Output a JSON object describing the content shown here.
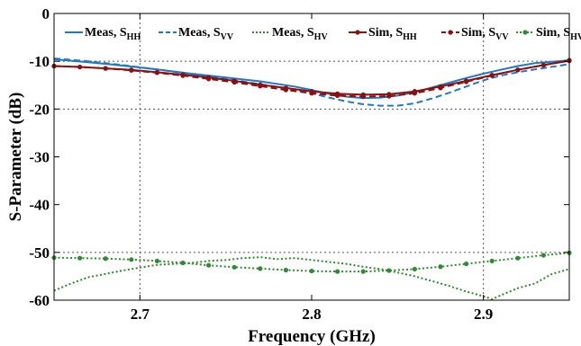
{
  "chart_data": {
    "type": "line",
    "xlabel": "Frequency (GHz)",
    "ylabel": "S-Parameter (dB)",
    "xlim": [
      2.65,
      2.95
    ],
    "ylim": [
      -60,
      0
    ],
    "x_ticks": [
      2.7,
      2.8,
      2.9
    ],
    "y_ticks": [
      0,
      -10,
      -20,
      -30,
      -40,
      -50,
      -60
    ],
    "x_tick_labels": [
      "2.7",
      "2.8",
      "2.9"
    ],
    "y_tick_labels": [
      "0",
      "-10",
      "-20",
      "-30",
      "-40",
      "-50",
      "-60"
    ],
    "grid": "dotted, at x=2.7, 2.9 and y=-10, -20, -50",
    "legend_position": "top",
    "series": [
      {
        "name": "Meas, SHH",
        "legend_main": "Meas, S",
        "legend_sub": "HH",
        "color": "#1f78c8",
        "style": "solid",
        "marker": "none",
        "x": [
          2.65,
          2.67,
          2.69,
          2.71,
          2.73,
          2.75,
          2.77,
          2.79,
          2.8,
          2.81,
          2.82,
          2.83,
          2.84,
          2.85,
          2.86,
          2.87,
          2.88,
          2.89,
          2.9,
          2.91,
          2.92,
          2.93,
          2.95
        ],
        "y": [
          -9.6,
          -10.2,
          -10.9,
          -11.7,
          -12.6,
          -13.4,
          -14.2,
          -15.3,
          -16.0,
          -16.8,
          -17.4,
          -17.7,
          -17.6,
          -17.2,
          -16.5,
          -15.5,
          -14.5,
          -13.5,
          -12.6,
          -11.8,
          -11.0,
          -10.4,
          -9.8
        ]
      },
      {
        "name": "Meas, SVV",
        "legend_main": "Meas, S",
        "legend_sub": "VV",
        "color": "#1f78c8",
        "style": "dashed",
        "marker": "none",
        "x": [
          2.65,
          2.67,
          2.69,
          2.71,
          2.73,
          2.75,
          2.77,
          2.79,
          2.8,
          2.81,
          2.82,
          2.83,
          2.84,
          2.85,
          2.86,
          2.87,
          2.88,
          2.89,
          2.9,
          2.91,
          2.92,
          2.93,
          2.95
        ],
        "y": [
          -9.4,
          -10.0,
          -10.8,
          -11.7,
          -12.7,
          -13.7,
          -14.8,
          -16.0,
          -16.7,
          -17.6,
          -18.4,
          -19.0,
          -19.3,
          -19.3,
          -18.8,
          -17.8,
          -16.6,
          -15.3,
          -14.0,
          -13.0,
          -12.3,
          -11.7,
          -10.6
        ]
      },
      {
        "name": "Meas, SHV",
        "legend_main": "Meas, S",
        "legend_sub": "HV",
        "color": "#2e8b2e",
        "style": "dotted",
        "marker": "none",
        "x": [
          2.65,
          2.66,
          2.67,
          2.68,
          2.69,
          2.7,
          2.71,
          2.72,
          2.73,
          2.74,
          2.75,
          2.76,
          2.77,
          2.78,
          2.79,
          2.8,
          2.81,
          2.82,
          2.83,
          2.84,
          2.85,
          2.86,
          2.87,
          2.88,
          2.89,
          2.9,
          2.905,
          2.91,
          2.92,
          2.93,
          2.94,
          2.95
        ],
        "y": [
          -58.0,
          -56.5,
          -55.2,
          -54.5,
          -53.8,
          -53.2,
          -52.6,
          -52.4,
          -52.2,
          -51.8,
          -51.6,
          -51.2,
          -51.0,
          -51.4,
          -51.2,
          -51.6,
          -52.0,
          -52.4,
          -53.0,
          -53.5,
          -54.2,
          -55.0,
          -56.0,
          -57.0,
          -58.2,
          -59.2,
          -59.8,
          -59.0,
          -57.5,
          -56.5,
          -54.5,
          -53.5
        ]
      },
      {
        "name": "Sim, SHH",
        "legend_main": "Sim, S",
        "legend_sub": "HH",
        "color": "#8b1010",
        "style": "solid",
        "marker": "dot",
        "x": [
          2.65,
          2.665,
          2.68,
          2.695,
          2.71,
          2.725,
          2.74,
          2.755,
          2.77,
          2.785,
          2.8,
          2.815,
          2.83,
          2.845,
          2.86,
          2.875,
          2.89,
          2.905,
          2.92,
          2.935,
          2.95
        ],
        "y": [
          -11.0,
          -11.2,
          -11.5,
          -11.8,
          -12.3,
          -12.8,
          -13.4,
          -14.1,
          -14.9,
          -15.6,
          -16.3,
          -16.8,
          -17.0,
          -16.9,
          -16.3,
          -15.3,
          -14.1,
          -12.9,
          -11.8,
          -10.8,
          -9.9
        ]
      },
      {
        "name": "Sim, SVV",
        "legend_main": "Sim, S",
        "legend_sub": "VV",
        "color": "#8b1010",
        "style": "dashed",
        "marker": "dot",
        "x": [
          2.65,
          2.665,
          2.68,
          2.695,
          2.71,
          2.725,
          2.74,
          2.755,
          2.77,
          2.785,
          2.8,
          2.815,
          2.83,
          2.845,
          2.86,
          2.875,
          2.89,
          2.905,
          2.92,
          2.935,
          2.95
        ],
        "y": [
          -11.0,
          -11.2,
          -11.5,
          -11.9,
          -12.4,
          -13.0,
          -13.7,
          -14.4,
          -15.2,
          -16.0,
          -16.7,
          -17.2,
          -17.4,
          -17.3,
          -16.7,
          -15.6,
          -14.3,
          -13.0,
          -11.8,
          -10.8,
          -9.8
        ]
      },
      {
        "name": "Sim, SHV",
        "legend_main": "Sim, S",
        "legend_sub": "HV",
        "color": "#2e8b2e",
        "style": "dotted",
        "marker": "dot",
        "x": [
          2.65,
          2.665,
          2.68,
          2.695,
          2.71,
          2.725,
          2.74,
          2.755,
          2.77,
          2.785,
          2.8,
          2.815,
          2.83,
          2.845,
          2.86,
          2.875,
          2.89,
          2.905,
          2.92,
          2.935,
          2.95
        ],
        "y": [
          -51.1,
          -51.2,
          -51.3,
          -51.5,
          -51.8,
          -52.2,
          -52.7,
          -53.1,
          -53.4,
          -53.7,
          -53.9,
          -54.0,
          -54.0,
          -53.8,
          -53.5,
          -53.0,
          -52.4,
          -51.8,
          -51.2,
          -50.6,
          -50.1
        ]
      }
    ]
  }
}
